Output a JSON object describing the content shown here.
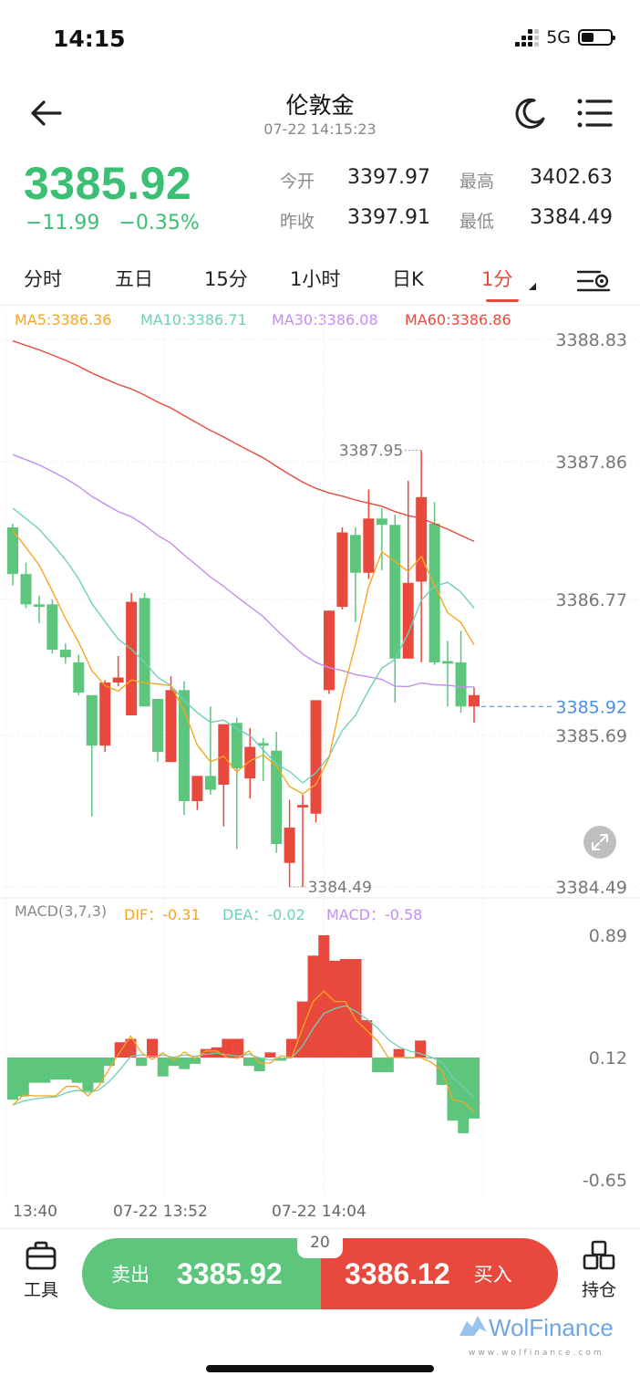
{
  "status": {
    "time": "14:15",
    "network": "5G"
  },
  "header": {
    "title": "伦敦金",
    "subtitle": "07-22 14:15:23"
  },
  "quote": {
    "price": "3385.92",
    "change": "−11.99",
    "change_pct": "−0.35%",
    "stats": [
      {
        "label": "今开",
        "value": "3397.97"
      },
      {
        "label": "最高",
        "value": "3402.63"
      },
      {
        "label": "昨收",
        "value": "3397.91"
      },
      {
        "label": "最低",
        "value": "3384.49"
      }
    ]
  },
  "tabs": [
    "分时",
    "五日",
    "15分",
    "1小时",
    "日K",
    "1分"
  ],
  "active_tab": "1分",
  "ma_legend": [
    {
      "label": "MA5:3386.36",
      "color": "#f5a623"
    },
    {
      "label": "MA10:3386.71",
      "color": "#6fcfb8"
    },
    {
      "label": "MA30:3386.08",
      "color": "#c48ef0"
    },
    {
      "label": "MA60:3386.86",
      "color": "#e8493c"
    }
  ],
  "macd_legend": [
    {
      "label": "MACD(3,7,3)",
      "color": "#888888"
    },
    {
      "label": "DIF：-0.31",
      "color": "#f5a623"
    },
    {
      "label": "DEA：-0.02",
      "color": "#6fcfb8"
    },
    {
      "label": "MACD：-0.58",
      "color": "#c48ef0"
    }
  ],
  "colors": {
    "up": "#e8493c",
    "down": "#5ec67c",
    "price": "#3bbf73"
  },
  "chart_data": {
    "type": "candlestick",
    "price_axis": [
      "3388.83",
      "3387.86",
      "3386.77",
      "3385.69",
      "3384.49"
    ],
    "current_price_label": "3385.92",
    "high_marker": "3387.95",
    "low_marker": "3384.49",
    "price_range": [
      3384.49,
      3388.83
    ],
    "candles": [
      {
        "o": 3387.34,
        "c": 3386.97,
        "h": 3387.37,
        "l": 3386.88
      },
      {
        "o": 3386.97,
        "c": 3386.73,
        "h": 3387.06,
        "l": 3386.7
      },
      {
        "o": 3386.73,
        "c": 3386.71,
        "h": 3386.8,
        "l": 3386.58
      },
      {
        "o": 3386.73,
        "c": 3386.37,
        "h": 3386.77,
        "l": 3386.34
      },
      {
        "o": 3386.37,
        "c": 3386.31,
        "h": 3386.42,
        "l": 3386.26
      },
      {
        "o": 3386.27,
        "c": 3386.03,
        "h": 3386.33,
        "l": 3386.01
      },
      {
        "o": 3386.01,
        "c": 3385.61,
        "h": 3386.01,
        "l": 3385.05
      },
      {
        "o": 3385.61,
        "c": 3386.11,
        "h": 3386.13,
        "l": 3385.56
      },
      {
        "o": 3386.11,
        "c": 3386.15,
        "h": 3386.32,
        "l": 3386.08
      },
      {
        "o": 3385.85,
        "c": 3386.75,
        "h": 3386.82,
        "l": 3385.85
      },
      {
        "o": 3386.78,
        "c": 3385.92,
        "h": 3386.82,
        "l": 3385.92
      },
      {
        "o": 3385.98,
        "c": 3385.56,
        "h": 3385.98,
        "l": 3385.48
      },
      {
        "o": 3385.48,
        "c": 3386.05,
        "h": 3386.16,
        "l": 3385.48
      },
      {
        "o": 3386.05,
        "c": 3385.17,
        "h": 3386.12,
        "l": 3385.06
      },
      {
        "o": 3385.17,
        "c": 3385.37,
        "h": 3385.37,
        "l": 3385.1
      },
      {
        "o": 3385.37,
        "c": 3385.26,
        "h": 3385.92,
        "l": 3385.22
      },
      {
        "o": 3385.3,
        "c": 3385.78,
        "h": 3385.78,
        "l": 3384.97
      },
      {
        "o": 3385.79,
        "c": 3385.43,
        "h": 3385.83,
        "l": 3384.79
      },
      {
        "o": 3385.35,
        "c": 3385.6,
        "h": 3385.75,
        "l": 3385.19
      },
      {
        "o": 3385.63,
        "c": 3385.61,
        "h": 3385.67,
        "l": 3385.33
      },
      {
        "o": 3385.57,
        "c": 3384.83,
        "h": 3385.72,
        "l": 3384.76
      },
      {
        "o": 3384.68,
        "c": 3384.96,
        "h": 3385.18,
        "l": 3384.49
      },
      {
        "o": 3385.12,
        "c": 3385.14,
        "h": 3385.22,
        "l": 3384.49
      },
      {
        "o": 3385.07,
        "c": 3385.97,
        "h": 3385.97,
        "l": 3385.0
      },
      {
        "o": 3386.05,
        "c": 3386.68,
        "h": 3386.68,
        "l": 3386.02
      },
      {
        "o": 3386.71,
        "c": 3387.3,
        "h": 3387.34,
        "l": 3386.69
      },
      {
        "o": 3387.28,
        "c": 3386.98,
        "h": 3387.34,
        "l": 3386.59
      },
      {
        "o": 3386.98,
        "c": 3387.41,
        "h": 3387.64,
        "l": 3386.93
      },
      {
        "o": 3387.41,
        "c": 3387.36,
        "h": 3387.49,
        "l": 3387.0
      },
      {
        "o": 3387.36,
        "c": 3386.3,
        "h": 3387.44,
        "l": 3385.95
      },
      {
        "o": 3386.3,
        "c": 3386.9,
        "h": 3387.71,
        "l": 3386.3
      },
      {
        "o": 3386.91,
        "c": 3387.58,
        "h": 3387.95,
        "l": 3386.27
      },
      {
        "o": 3387.37,
        "c": 3386.27,
        "h": 3387.54,
        "l": 3386.25
      },
      {
        "o": 3386.28,
        "c": 3386.26,
        "h": 3386.44,
        "l": 3385.92
      },
      {
        "o": 3386.27,
        "c": 3385.92,
        "h": 3386.52,
        "l": 3385.87
      },
      {
        "o": 3385.92,
        "c": 3386.01,
        "h": 3386.07,
        "l": 3385.79
      }
    ],
    "macd_axis": [
      "0.89",
      "0.12",
      "-0.65"
    ],
    "macd_range": [
      -0.65,
      0.89
    ],
    "macd": [
      -0.51,
      -0.4,
      -0.41,
      -0.41,
      -0.41,
      -0.31,
      -0.31,
      -0.41,
      -0.31,
      -0.12,
      0.06,
      0.23,
      0.05,
      -0.02,
      0.05,
      -0.03,
      0.06,
      -0.01,
      0.07,
      0.07,
      0.0,
      -0.01,
      0.07,
      -0.06,
      -0.06,
      0.02,
      0.0,
      0.31,
      0.6,
      0.71,
      0.6,
      0.6,
      0.4,
      0.29,
      0.18,
      0.0,
      0.0,
      0.0,
      0.0,
      -0.05,
      -0.14,
      -0.45,
      -0.48,
      -0.58
    ],
    "macd_bars": [
      -0.4,
      -0.37,
      -0.24,
      -0.24,
      -0.21,
      -0.21,
      -0.24,
      -0.32,
      -0.24,
      -0.08,
      0.09,
      0.11,
      -0.08,
      0.11,
      -0.18,
      -0.08,
      -0.11,
      -0.06,
      0.05,
      0.06,
      0.11,
      0.11,
      -0.08,
      -0.13,
      0.03,
      -0.03,
      0.11,
      0.33,
      0.6,
      0.72,
      0.57,
      0.58,
      0.58,
      0.22,
      -0.14,
      -0.14,
      0.05,
      -0.01,
      0.1,
      0.0,
      -0.26,
      -0.6,
      -0.72,
      -0.58
    ],
    "x_labels": [
      "13:40",
      "07-22 13:52",
      "07-22 14:04"
    ]
  },
  "bottom": {
    "tools_label": "工具",
    "positions_label": "持仓",
    "sell_label": "卖出",
    "sell_price": "3385.92",
    "buy_label": "买入",
    "buy_price": "3386.12",
    "spread": "20"
  },
  "watermark": {
    "brand": "WolFinance",
    "url": "www.wolfinance.com"
  }
}
